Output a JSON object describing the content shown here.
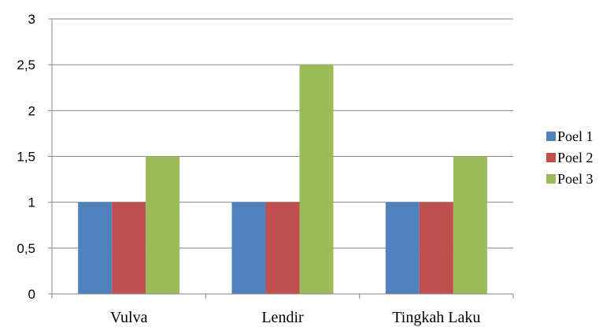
{
  "chart_data": {
    "type": "bar",
    "categories": [
      "Vulva",
      "Lendir",
      "Tingkah Laku"
    ],
    "series": [
      {
        "name": "Poel 1",
        "values": [
          1,
          1,
          1
        ],
        "color": "#4F81BD"
      },
      {
        "name": "Poel 2",
        "values": [
          1,
          1,
          1
        ],
        "color": "#C0504D"
      },
      {
        "name": "Poel 3",
        "values": [
          1.5,
          2.5,
          1.5
        ],
        "color": "#9BBB59"
      }
    ],
    "title": "",
    "xlabel": "",
    "ylabel": "",
    "ylim": [
      0,
      3
    ],
    "yticks": [
      0,
      0.5,
      1,
      1.5,
      2,
      2.5,
      3
    ],
    "ytick_labels": [
      "0",
      "0,5",
      "1",
      "1,5",
      "2",
      "2,5",
      "3"
    ],
    "grid": true,
    "legend_position": "right",
    "gridline_color": "#868686"
  }
}
